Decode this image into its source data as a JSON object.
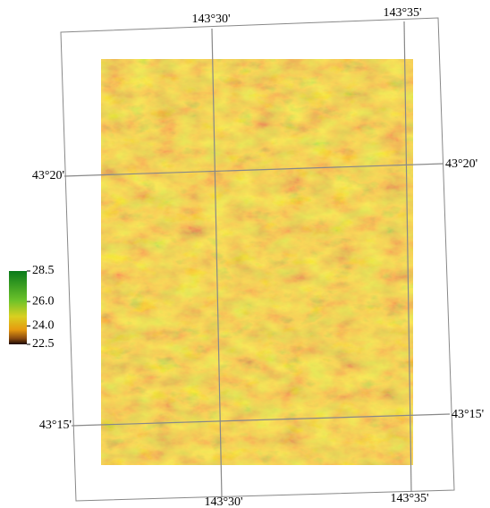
{
  "graticule": {
    "top": [
      "143°30'",
      "143°35'"
    ],
    "bottom": [
      "143°30'",
      "143°35'"
    ],
    "left": [
      "43°20'",
      "43°15'"
    ],
    "right": [
      "43°20'",
      "43°15'"
    ]
  },
  "colorbar": {
    "range": [
      22.5,
      28.5
    ],
    "ticks": [
      28.5,
      {
        "value": 26,
        "label": "26.0"
      },
      {
        "value": 24,
        "label": "24.0"
      },
      22.5
    ]
  }
}
